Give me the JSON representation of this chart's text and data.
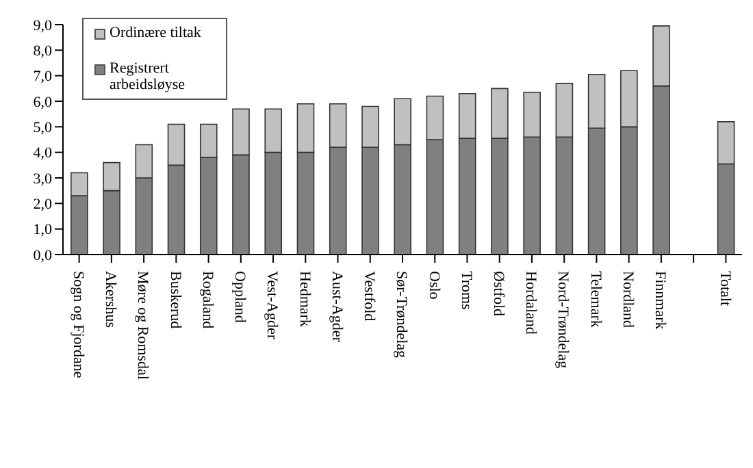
{
  "chart_data": {
    "type": "bar",
    "stacked": true,
    "categories": [
      "Sogn og Fjordane",
      "Akershus",
      "Møre og Romsdal",
      "Buskerud",
      "Rogaland",
      "Oppland",
      "Vest-Agder",
      "Hedmark",
      "Aust-Agder",
      "Vestfold",
      "Sør-Trøndelag",
      "Oslo",
      "Troms",
      "Østfold",
      "Hordaland",
      "Nord-Trøndelag",
      "Telemark",
      "Nordland",
      "Finnmark",
      null,
      "Totalt"
    ],
    "series": [
      {
        "name": "Registrert arbeidsløyse",
        "color": "#808080",
        "values": [
          2.3,
          2.5,
          3.0,
          3.5,
          3.8,
          3.9,
          4.0,
          4.0,
          4.2,
          4.2,
          4.3,
          4.5,
          4.55,
          4.55,
          4.6,
          4.6,
          4.95,
          5.0,
          6.6,
          null,
          3.55
        ]
      },
      {
        "name": "Ordinære tiltak",
        "color": "#c0c0c0",
        "values": [
          0.9,
          1.1,
          1.3,
          1.6,
          1.3,
          1.8,
          1.7,
          1.9,
          1.7,
          1.6,
          1.8,
          1.7,
          1.75,
          1.95,
          1.75,
          2.1,
          2.1,
          2.2,
          2.35,
          null,
          1.65
        ]
      }
    ],
    "ylim": [
      0,
      9
    ],
    "yticks": [
      {
        "value": 0,
        "label": "0,0"
      },
      {
        "value": 1,
        "label": "1,0"
      },
      {
        "value": 2,
        "label": "2,0"
      },
      {
        "value": 3,
        "label": "3,0"
      },
      {
        "value": 4,
        "label": "4,0"
      },
      {
        "value": 5,
        "label": "5,0"
      },
      {
        "value": 6,
        "label": "6,0"
      },
      {
        "value": 7,
        "label": "7,0"
      },
      {
        "value": 8,
        "label": "8,0"
      },
      {
        "value": 9,
        "label": "9,0"
      }
    ],
    "grid": false,
    "legend": "top left"
  }
}
